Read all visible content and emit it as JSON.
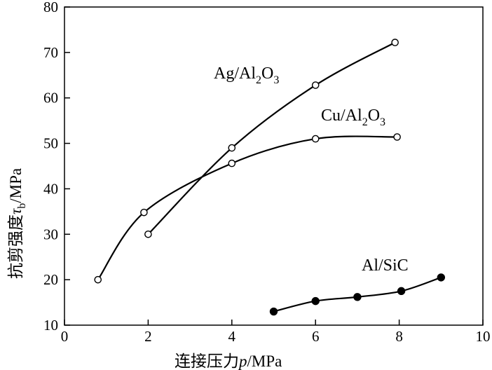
{
  "chart_data": {
    "type": "line",
    "xlabel": {
      "prefix": "连接压力",
      "symbol": "p",
      "unit": "/MPa"
    },
    "ylabel": {
      "prefix": "抗剪强度",
      "symbol": "τ",
      "subscript": "b",
      "unit": "/MPa"
    },
    "xlim": [
      0,
      10
    ],
    "ylim": [
      10,
      80
    ],
    "xticks": [
      "0",
      "2",
      "4",
      "6",
      "8",
      "10"
    ],
    "yticks": [
      "10",
      "20",
      "30",
      "40",
      "50",
      "60",
      "70",
      "80"
    ],
    "grid": false,
    "series": [
      {
        "name": "Ag/Al2O3",
        "label": {
          "main": "Ag/Al",
          "sub1": "2",
          "mid": "O",
          "sub2": "3"
        },
        "marker": "open-circle",
        "x": [
          2.0,
          4.0,
          6.0,
          7.9
        ],
        "y": [
          30.0,
          49.0,
          62.8,
          72.2
        ]
      },
      {
        "name": "Cu/Al2O3",
        "label": {
          "main": "Cu/Al",
          "sub1": "2",
          "mid": "O",
          "sub2": "3"
        },
        "marker": "open-circle",
        "x": [
          0.8,
          1.9,
          4.0,
          6.0,
          7.95
        ],
        "y": [
          20.0,
          34.8,
          45.6,
          51.0,
          51.4
        ]
      },
      {
        "name": "Al/SiC",
        "label": {
          "main": "Al/SiC",
          "sub1": "",
          "mid": "",
          "sub2": ""
        },
        "marker": "filled-circle",
        "x": [
          5.0,
          6.0,
          7.0,
          8.05,
          9.0
        ],
        "y": [
          13.0,
          15.3,
          16.2,
          17.5,
          20.5
        ]
      }
    ]
  }
}
